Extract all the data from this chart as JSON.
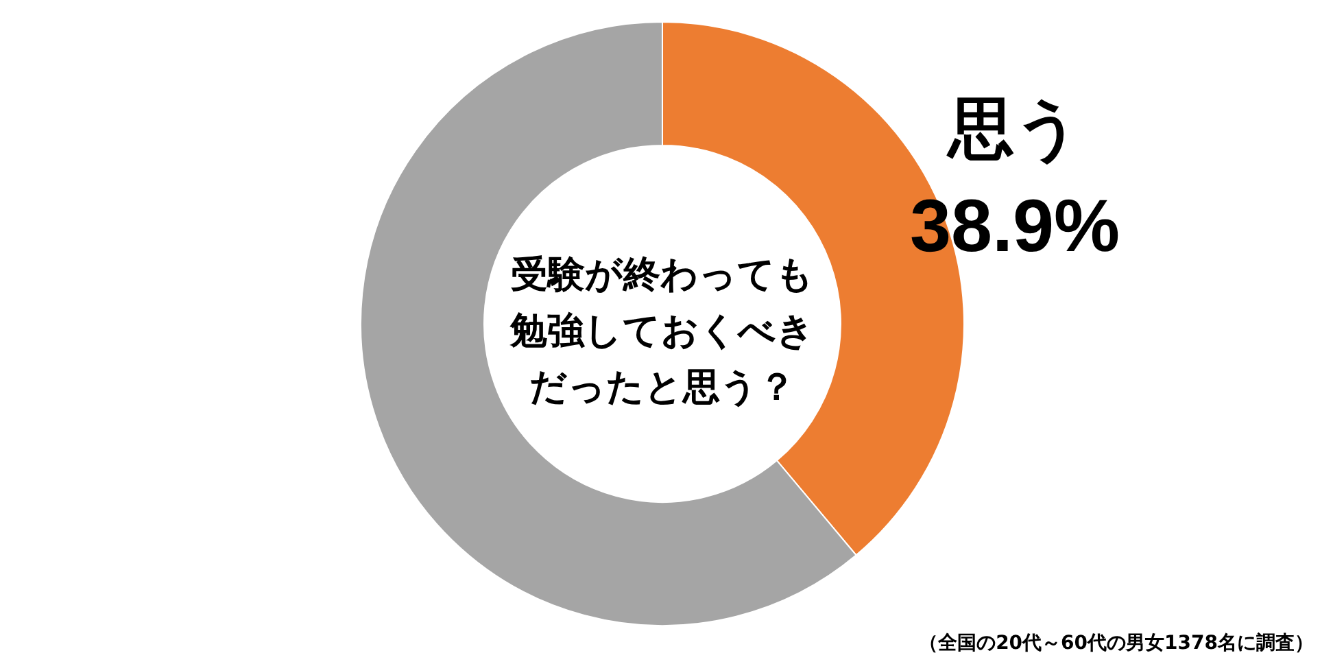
{
  "chart_data": {
    "type": "donut",
    "title": "受験が終わっても勉強しておくべきだったと思う？",
    "categories": [
      "思う",
      null
    ],
    "values": [
      38.9,
      61.1
    ],
    "colors": [
      "#ed7d31",
      "#a5a5a5"
    ],
    "value_labels": [
      "38.9%",
      null
    ],
    "annotations": [
      "（全国の20代～60代の男女1378名に調査）"
    ]
  }
}
